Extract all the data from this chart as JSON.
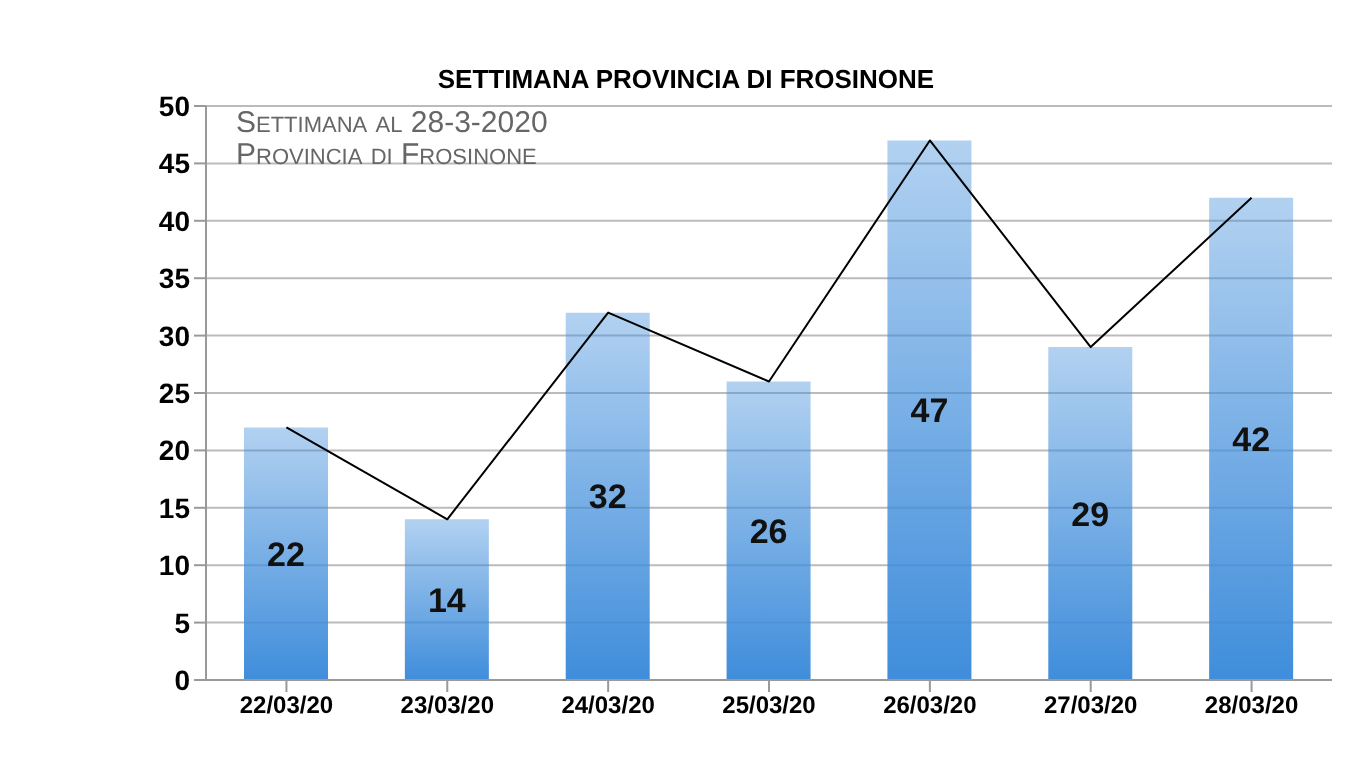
{
  "chart_data": {
    "type": "bar",
    "title": "SETTIMANA PROVINCIA DI FROSINONE",
    "annotations": [
      "Settimana al 28-3-2020",
      "Provincia di Frosinone"
    ],
    "categories": [
      "22/03/20",
      "23/03/20",
      "24/03/20",
      "25/03/20",
      "26/03/20",
      "27/03/20",
      "28/03/20"
    ],
    "series": [
      {
        "color": "#3f8ddb",
        "values": [
          22,
          14,
          32,
          26,
          47,
          29,
          42
        ],
        "value_labels": [
          "22",
          "14",
          "32",
          "26",
          "47",
          "29",
          "42"
        ]
      },
      {
        "type": "line",
        "color": "#000000",
        "values": [
          22,
          14,
          32,
          26,
          47,
          29,
          42
        ]
      }
    ],
    "ylim": [
      0,
      50
    ],
    "yticks": [
      0,
      5,
      10,
      15,
      20,
      25,
      30,
      35,
      40,
      45,
      50
    ],
    "grid": "y",
    "legend": false,
    "marker": "none"
  }
}
